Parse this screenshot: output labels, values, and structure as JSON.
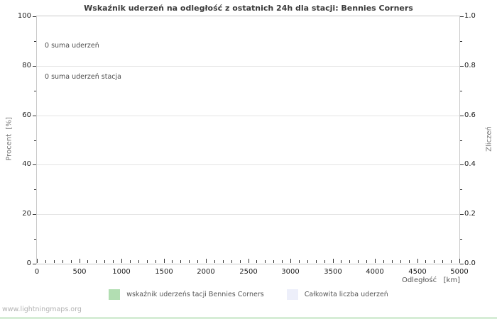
{
  "header": {
    "title": "Wskaźnik uderzeń na odległość z ostatnich 24h dla stacji: Bennies Corners"
  },
  "watermark": "www.lightningmaps.org",
  "legend": {
    "items": [
      {
        "label": "wskaźnik uderzeńs tacji Bennies Corners",
        "color": "#b2deb2"
      },
      {
        "label": "Całkowita liczba uderzeń",
        "color": "#edeffa"
      }
    ]
  },
  "colors": {
    "plot_border": "#c9c9c9",
    "gridline": "#e4e4e4",
    "tick_mark": "#333333",
    "title_text": "#3a3a3a",
    "axis_label_text": "#767676",
    "annotation_text": "#4d4d4d",
    "watermark_text": "#b2b2b2",
    "bottom_strip": "#d6edd6"
  },
  "chart_data": {
    "type": "line",
    "title": "Wskaźnik uderzeń na odległość z ostatnich 24h dla stacji: Bennies Corners",
    "xlabel": "Odległość   [km]",
    "ylabel": "Procent  [%]",
    "ylabel_right": "Zliczeń",
    "xlim": [
      0,
      5000
    ],
    "x_major_ticks": [
      0,
      500,
      1000,
      1500,
      2000,
      2500,
      3000,
      3500,
      4000,
      4500,
      5000
    ],
    "x_minor_step": 100,
    "ylim_left": [
      0,
      100
    ],
    "y_major_ticks_left": [
      0,
      20,
      40,
      60,
      80,
      100
    ],
    "y_minor_ticks_left": [
      10,
      30,
      50,
      70,
      90
    ],
    "ylim_right": [
      0.0,
      1.0
    ],
    "y_major_tick_labels_right": [
      "0.0",
      "0.2",
      "0.4",
      "0.6",
      "0.8",
      "1.0"
    ],
    "y_major_ticks_right": [
      0.0,
      0.2,
      0.4,
      0.6,
      0.8,
      1.0
    ],
    "y_minor_ticks_right": [
      0.1,
      0.3,
      0.5,
      0.7,
      0.9
    ],
    "grid": "horizontal-only",
    "legend_position": "bottom",
    "annotations": [
      "0 suma uderzeń",
      "0 suma uderzeń stacja"
    ],
    "series": [
      {
        "name": "wskaźnik uderzeńs tacji Bennies Corners",
        "color": "#b2deb2",
        "x": [],
        "values": []
      },
      {
        "name": "Całkowita liczba uderzeń",
        "color": "#edeffa",
        "x": [],
        "values": []
      }
    ]
  }
}
